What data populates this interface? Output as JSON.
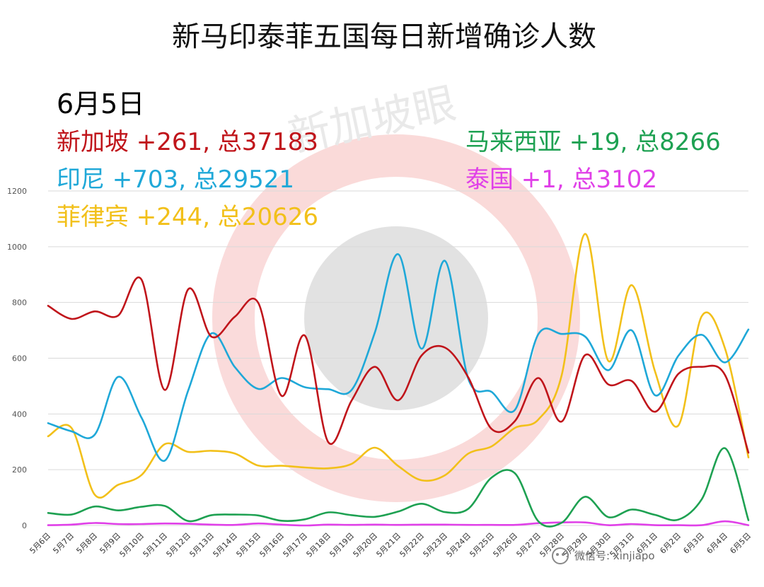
{
  "title": "新马印泰菲五国每日新增确诊人数",
  "date_label": "6月5日",
  "stats": [
    {
      "text": "新加坡 +261, 总37183",
      "color": "#c0151b",
      "column": "left",
      "row": 0
    },
    {
      "text": "印尼 +703, 总29521",
      "color": "#1fa8d8",
      "column": "left",
      "row": 1
    },
    {
      "text": "菲律宾 +244, 总20626",
      "color": "#f2c01a",
      "column": "left",
      "row": 2
    },
    {
      "text": "马来西亚 +19, 总8266",
      "color": "#1ea152",
      "column": "right",
      "row": 0
    },
    {
      "text": "泰国 +1, 总3102",
      "color": "#e040e8",
      "column": "right",
      "row": 1
    }
  ],
  "watermark": {
    "logo_text": "新加坡眼",
    "wechat_text": "微信号: xinjiapo"
  },
  "chart_data": {
    "type": "line",
    "title": "新马印泰菲五国每日新增确诊人数",
    "xlabel": "",
    "ylabel": "",
    "ylim": [
      0,
      1200
    ],
    "yticks": [
      0,
      200,
      400,
      600,
      800,
      1000,
      1200
    ],
    "grid": true,
    "categories": [
      "5月6日",
      "5月7日",
      "5月8日",
      "5月9日",
      "5月10日",
      "5月11日",
      "5月12日",
      "5月13日",
      "5月14日",
      "5月15日",
      "5月16日",
      "5月17日",
      "5月18日",
      "5月19日",
      "5月20日",
      "5月21日",
      "5月22日",
      "5月23日",
      "5月24日",
      "5月25日",
      "5月26日",
      "5月27日",
      "5月28日",
      "5月29日",
      "5月30日",
      "5月31日",
      "6月1日",
      "6月2日",
      "6月3日",
      "6月4日",
      "6月5日"
    ],
    "series": [
      {
        "name": "新加坡",
        "color": "#c0151b",
        "values": [
          788,
          741,
          768,
          753,
          882,
          486,
          847,
          677,
          749,
          799,
          465,
          681,
          299,
          448,
          569,
          449,
          610,
          638,
          531,
          346,
          375,
          529,
          373,
          611,
          506,
          518,
          408,
          544,
          569,
          539,
          261
        ]
      },
      {
        "name": "印尼",
        "color": "#1fa8d8",
        "values": [
          367,
          338,
          326,
          533,
          387,
          233,
          484,
          689,
          568,
          490,
          529,
          496,
          489,
          486,
          693,
          973,
          634,
          949,
          526,
          479,
          415,
          686,
          687,
          678,
          557,
          700,
          467,
          609,
          684,
          585,
          703
        ]
      },
      {
        "name": "菲律宾",
        "color": "#f2c01a",
        "values": [
          320,
          350,
          110,
          146,
          181,
          292,
          264,
          268,
          258,
          215,
          214,
          208,
          205,
          221,
          279,
          213,
          162,
          180,
          258,
          284,
          350,
          380,
          539,
          1046,
          590,
          862,
          552,
          359,
          751,
          634,
          244
        ]
      },
      {
        "name": "马来西亚",
        "color": "#1ea152",
        "values": [
          45,
          39,
          68,
          54,
          67,
          70,
          16,
          37,
          39,
          36,
          17,
          22,
          47,
          37,
          31,
          50,
          78,
          48,
          60,
          172,
          187,
          15,
          10,
          103,
          30,
          57,
          38,
          21,
          94,
          277,
          19
        ]
      },
      {
        "name": "泰国",
        "color": "#e040e8",
        "values": [
          1,
          3,
          9,
          5,
          5,
          7,
          6,
          3,
          2,
          7,
          3,
          0,
          3,
          2,
          3,
          2,
          3,
          3,
          2,
          2,
          2,
          8,
          11,
          11,
          1,
          5,
          1,
          1,
          1,
          15,
          1
        ]
      }
    ]
  }
}
